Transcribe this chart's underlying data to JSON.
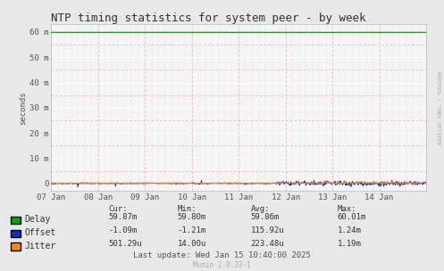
{
  "title": "NTP timing statistics for system peer - by week",
  "ylabel": "seconds",
  "yticks_labels": [
    "0",
    "10 m",
    "20 m",
    "30 m",
    "40 m",
    "50 m",
    "60 m"
  ],
  "yticks_values": [
    0,
    600,
    1200,
    1800,
    2400,
    3000,
    3600
  ],
  "ylim": [
    -180,
    3780
  ],
  "xtick_labels": [
    "07 Jan",
    "08 Jan",
    "09 Jan",
    "10 Jan",
    "11 Jan",
    "12 Jan",
    "13 Jan",
    "14 Jan"
  ],
  "xstart": 0,
  "xend": 8,
  "background_color": "#e8e8e8",
  "plot_bg_color": "#f5f5f5",
  "grid_white_color": "#ffffff",
  "grid_pink_color": "#ffaaaa",
  "grid_dot_color": "#ccccdd",
  "delay_color": "#00aa00",
  "offset_color": "#0033cc",
  "jitter_color": "#ff8800",
  "delay_value": 3590.0,
  "watermark_text": "RRDTOOL / TOBI OETIKER",
  "legend_items": [
    "Delay",
    "Offset",
    "Jitter"
  ],
  "legend_colors": [
    "#00aa00",
    "#0033cc",
    "#ff8800"
  ],
  "stats_headers": [
    "Cur:",
    "Min:",
    "Avg:",
    "Max:"
  ],
  "stats_delay": [
    "59.87m",
    "59.80m",
    "59.86m",
    "60.01m"
  ],
  "stats_offset": [
    "-1.09m",
    "-1.21m",
    "115.92u",
    "1.24m"
  ],
  "stats_jitter": [
    "501.29u",
    "14.00u",
    "223.48u",
    "1.19m"
  ],
  "last_update": "Last update: Wed Jan 15 10:40:00 2025",
  "munin_text": "Munin 2.0.33-1",
  "title_fontsize": 9,
  "axis_fontsize": 6.5,
  "legend_fontsize": 7,
  "stats_fontsize": 6.5
}
